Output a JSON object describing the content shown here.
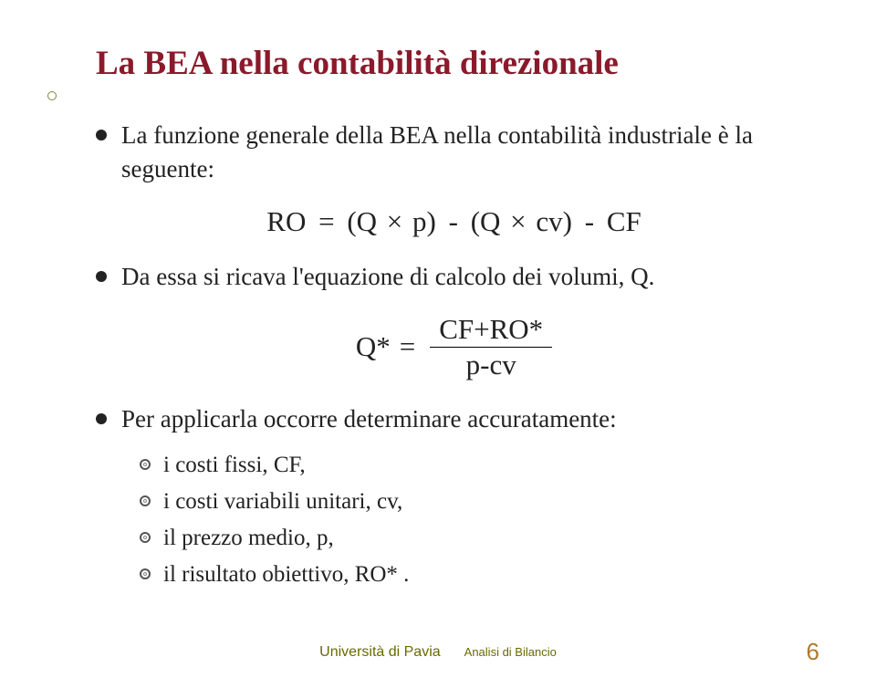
{
  "colors": {
    "title": "#8a1a2b",
    "body": "#222222",
    "deco_border": "#7a8a3a",
    "footer_uni": "#6a6a00",
    "footer_sub": "#6a6a00",
    "pagenum": "#b07a2e",
    "background": "#ffffff"
  },
  "fontsizes": {
    "title": 37,
    "bullet1": 27,
    "formula": 31,
    "bullet2": 25,
    "footer_uni": 16,
    "footer_sub": 13,
    "pagenum": 26
  },
  "title": "La BEA nella contabilità direzionale",
  "bullets": [
    "La funzione generale della BEA nella contabilità industriale è la seguente:",
    "Da essa si ricava l'equazione di calcolo dei volumi, Q.",
    "Per applicarla occorre determinare accuratamente:"
  ],
  "formula1": {
    "lhs": "RO",
    "eq": "=",
    "rhs_a": "(Q",
    "times1": "×",
    "rhs_b": "p)",
    "minus": "-",
    "rhs_c": "(Q",
    "times2": "×",
    "rhs_d": "cv)",
    "minus2": "-",
    "rhs_e": "CF"
  },
  "formula2": {
    "lhs": "Q*",
    "eq": "=",
    "num": "CF+RO*",
    "den": "p-cv"
  },
  "sublist": [
    "i costi fissi, CF,",
    "i costi variabili unitari, cv,",
    "il prezzo medio, p,",
    "il risultato obiettivo, RO* ."
  ],
  "footer": {
    "uni": "Università di Pavia",
    "sub": "Analisi di Bilancio"
  },
  "page_number": "6"
}
